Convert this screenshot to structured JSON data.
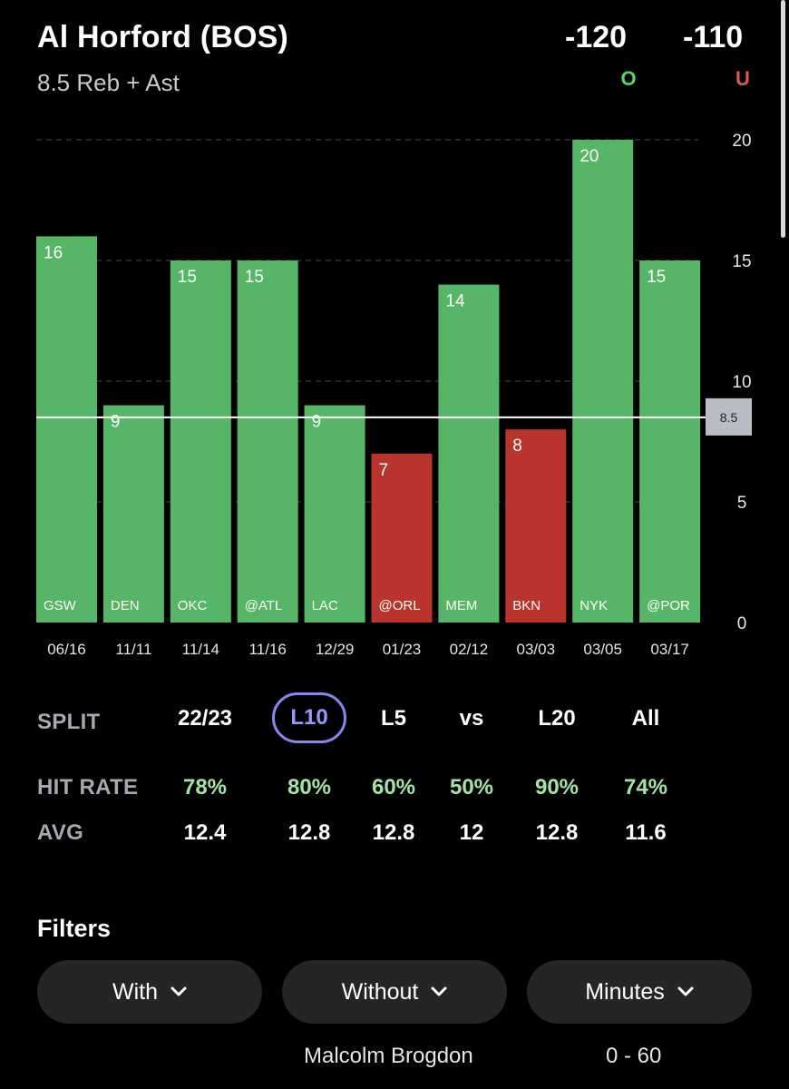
{
  "header": {
    "player": "Al Horford (BOS)",
    "prop": "8.5 Reb + Ast",
    "over_odds": "-120",
    "under_odds": "-110",
    "over_label": "O",
    "under_label": "U"
  },
  "colors": {
    "green": "#56b566",
    "red": "#b9342d",
    "over": "#5fd06b",
    "under": "#e0594f",
    "line_tag": "#b8bcc4"
  },
  "chart_data": {
    "type": "bar",
    "categories": [
      "06/16",
      "11/11",
      "11/14",
      "11/16",
      "12/29",
      "01/23",
      "02/12",
      "03/03",
      "03/05",
      "03/17"
    ],
    "opponents": [
      "GSW",
      "DEN",
      "OKC",
      "@ATL",
      "LAC",
      "@ORL",
      "MEM",
      "BKN",
      "NYK",
      "@POR"
    ],
    "values": [
      16,
      9,
      15,
      15,
      9,
      7,
      14,
      8,
      20,
      15
    ],
    "line": 8.5,
    "line_label": "8.5",
    "ylim": [
      0,
      20
    ],
    "yticks": [
      0,
      5,
      10,
      15,
      20
    ],
    "grid": true
  },
  "splits": {
    "title": "SPLIT",
    "columns": [
      "22/23",
      "L10",
      "L5",
      "vs",
      "L20",
      "All"
    ],
    "selected_index": 1,
    "hit_label": "HIT RATE",
    "hit_rates": [
      "78%",
      "80%",
      "60%",
      "50%",
      "90%",
      "74%"
    ],
    "avg_label": "AVG",
    "avgs": [
      "12.4",
      "12.8",
      "12.8",
      "12",
      "12.8",
      "11.6"
    ]
  },
  "filters": {
    "title": "Filters",
    "buttons": [
      {
        "label": "With",
        "value": ""
      },
      {
        "label": "Without",
        "value": "Malcolm Brogdon"
      },
      {
        "label": "Minutes",
        "value": "0 - 60"
      }
    ]
  }
}
